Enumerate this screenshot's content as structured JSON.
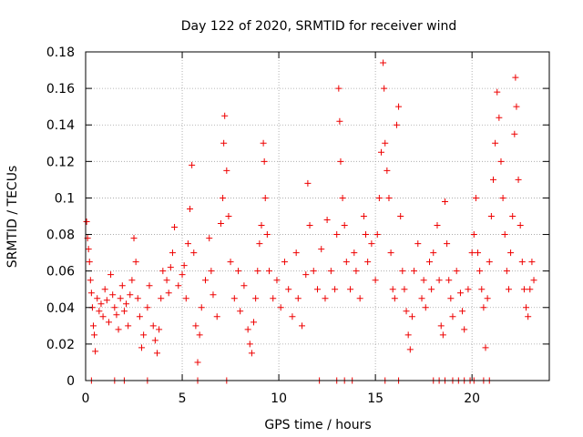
{
  "chart_data": {
    "type": "scatter",
    "title": "Day 122 of 2020, SRMTID for receiver wind",
    "xlabel": "GPS time / hours",
    "ylabel": "SRMTID / TECUs",
    "xlim": [
      0,
      24
    ],
    "ylim": [
      0,
      0.18
    ],
    "x_ticks": [
      "0",
      "5",
      "10",
      "15",
      "20"
    ],
    "x_tick_values": [
      0,
      5,
      10,
      15,
      20
    ],
    "y_ticks": [
      "0",
      "0.02",
      "0.04",
      "0.06",
      "0.08",
      "0.1",
      "0.12",
      "0.14",
      "0.16",
      "0.18"
    ],
    "y_tick_values": [
      0,
      0.02,
      0.04,
      0.06,
      0.08,
      0.1,
      0.12,
      0.14,
      0.16,
      0.18
    ],
    "grid": true,
    "marker": "plus",
    "color": "#ee0000",
    "series": [
      {
        "name": "SRMTID",
        "points": [
          [
            0.05,
            0.087
          ],
          [
            0.1,
            0.078
          ],
          [
            0.15,
            0.072
          ],
          [
            0.2,
            0.065
          ],
          [
            0.25,
            0.055
          ],
          [
            0.3,
            0.048
          ],
          [
            0.35,
            0.04
          ],
          [
            0.4,
            0.03
          ],
          [
            0.45,
            0.025
          ],
          [
            0.5,
            0.016
          ],
          [
            0.6,
            0.045
          ],
          [
            0.7,
            0.038
          ],
          [
            0.8,
            0.042
          ],
          [
            0.9,
            0.035
          ],
          [
            1.0,
            0.05
          ],
          [
            1.1,
            0.044
          ],
          [
            1.2,
            0.032
          ],
          [
            1.3,
            0.058
          ],
          [
            1.4,
            0.047
          ],
          [
            1.5,
            0.04
          ],
          [
            1.6,
            0.036
          ],
          [
            1.7,
            0.028
          ],
          [
            1.8,
            0.045
          ],
          [
            1.9,
            0.052
          ],
          [
            2.0,
            0.038
          ],
          [
            2.1,
            0.042
          ],
          [
            2.2,
            0.03
          ],
          [
            2.3,
            0.047
          ],
          [
            2.4,
            0.055
          ],
          [
            2.5,
            0.078
          ],
          [
            2.6,
            0.065
          ],
          [
            2.7,
            0.045
          ],
          [
            2.8,
            0.035
          ],
          [
            2.9,
            0.018
          ],
          [
            3.0,
            0.025
          ],
          [
            3.2,
            0.04
          ],
          [
            3.3,
            0.052
          ],
          [
            3.5,
            0.03
          ],
          [
            3.6,
            0.022
          ],
          [
            3.7,
            0.015
          ],
          [
            3.8,
            0.028
          ],
          [
            3.9,
            0.045
          ],
          [
            4.0,
            0.06
          ],
          [
            4.2,
            0.055
          ],
          [
            4.3,
            0.048
          ],
          [
            4.4,
            0.062
          ],
          [
            4.5,
            0.07
          ],
          [
            4.6,
            0.084
          ],
          [
            4.8,
            0.052
          ],
          [
            5.0,
            0.058
          ],
          [
            5.1,
            0.063
          ],
          [
            5.2,
            0.045
          ],
          [
            5.3,
            0.075
          ],
          [
            5.4,
            0.094
          ],
          [
            5.5,
            0.118
          ],
          [
            5.6,
            0.07
          ],
          [
            5.7,
            0.03
          ],
          [
            5.8,
            0.01
          ],
          [
            5.9,
            0.025
          ],
          [
            6.0,
            0.04
          ],
          [
            6.2,
            0.055
          ],
          [
            6.4,
            0.078
          ],
          [
            6.5,
            0.06
          ],
          [
            6.6,
            0.047
          ],
          [
            6.8,
            0.035
          ],
          [
            7.0,
            0.086
          ],
          [
            7.1,
            0.1
          ],
          [
            7.15,
            0.13
          ],
          [
            7.2,
            0.145
          ],
          [
            7.3,
            0.115
          ],
          [
            7.4,
            0.09
          ],
          [
            7.5,
            0.065
          ],
          [
            7.7,
            0.045
          ],
          [
            7.9,
            0.06
          ],
          [
            8.0,
            0.038
          ],
          [
            8.2,
            0.052
          ],
          [
            8.4,
            0.028
          ],
          [
            8.5,
            0.02
          ],
          [
            8.6,
            0.015
          ],
          [
            8.7,
            0.032
          ],
          [
            8.8,
            0.045
          ],
          [
            8.9,
            0.06
          ],
          [
            9.0,
            0.075
          ],
          [
            9.1,
            0.085
          ],
          [
            9.2,
            0.13
          ],
          [
            9.25,
            0.12
          ],
          [
            9.3,
            0.1
          ],
          [
            9.4,
            0.08
          ],
          [
            9.5,
            0.06
          ],
          [
            9.7,
            0.045
          ],
          [
            9.9,
            0.055
          ],
          [
            10.1,
            0.04
          ],
          [
            10.3,
            0.065
          ],
          [
            10.5,
            0.05
          ],
          [
            10.7,
            0.035
          ],
          [
            10.9,
            0.07
          ],
          [
            11.0,
            0.045
          ],
          [
            11.2,
            0.03
          ],
          [
            11.4,
            0.058
          ],
          [
            11.5,
            0.108
          ],
          [
            11.6,
            0.085
          ],
          [
            11.8,
            0.06
          ],
          [
            12.0,
            0.05
          ],
          [
            12.2,
            0.072
          ],
          [
            12.4,
            0.045
          ],
          [
            12.5,
            0.088
          ],
          [
            12.7,
            0.06
          ],
          [
            12.9,
            0.05
          ],
          [
            13.0,
            0.08
          ],
          [
            13.1,
            0.16
          ],
          [
            13.15,
            0.142
          ],
          [
            13.2,
            0.12
          ],
          [
            13.3,
            0.1
          ],
          [
            13.4,
            0.085
          ],
          [
            13.5,
            0.065
          ],
          [
            13.7,
            0.05
          ],
          [
            13.9,
            0.07
          ],
          [
            14.0,
            0.06
          ],
          [
            14.2,
            0.045
          ],
          [
            14.4,
            0.09
          ],
          [
            14.5,
            0.08
          ],
          [
            14.6,
            0.065
          ],
          [
            14.8,
            0.075
          ],
          [
            15.0,
            0.055
          ],
          [
            15.1,
            0.08
          ],
          [
            15.2,
            0.1
          ],
          [
            15.3,
            0.125
          ],
          [
            15.4,
            0.174
          ],
          [
            15.45,
            0.16
          ],
          [
            15.5,
            0.13
          ],
          [
            15.6,
            0.115
          ],
          [
            15.7,
            0.1
          ],
          [
            15.8,
            0.07
          ],
          [
            15.9,
            0.05
          ],
          [
            16.0,
            0.045
          ],
          [
            16.1,
            0.14
          ],
          [
            16.2,
            0.15
          ],
          [
            16.3,
            0.09
          ],
          [
            16.4,
            0.06
          ],
          [
            16.5,
            0.05
          ],
          [
            16.6,
            0.038
          ],
          [
            16.7,
            0.025
          ],
          [
            16.8,
            0.017
          ],
          [
            16.9,
            0.035
          ],
          [
            17.0,
            0.06
          ],
          [
            17.2,
            0.075
          ],
          [
            17.4,
            0.045
          ],
          [
            17.5,
            0.055
          ],
          [
            17.6,
            0.04
          ],
          [
            17.8,
            0.065
          ],
          [
            17.9,
            0.05
          ],
          [
            18.0,
            0.07
          ],
          [
            18.2,
            0.085
          ],
          [
            18.3,
            0.055
          ],
          [
            18.4,
            0.03
          ],
          [
            18.5,
            0.025
          ],
          [
            18.6,
            0.098
          ],
          [
            18.7,
            0.075
          ],
          [
            18.8,
            0.055
          ],
          [
            18.9,
            0.045
          ],
          [
            19.0,
            0.035
          ],
          [
            19.2,
            0.06
          ],
          [
            19.4,
            0.048
          ],
          [
            19.5,
            0.038
          ],
          [
            19.6,
            0.028
          ],
          [
            19.8,
            0.05
          ],
          [
            20.0,
            0.07
          ],
          [
            20.1,
            0.08
          ],
          [
            20.2,
            0.1
          ],
          [
            20.3,
            0.07
          ],
          [
            20.4,
            0.06
          ],
          [
            20.5,
            0.05
          ],
          [
            20.6,
            0.04
          ],
          [
            20.7,
            0.018
          ],
          [
            20.8,
            0.045
          ],
          [
            20.9,
            0.065
          ],
          [
            21.0,
            0.09
          ],
          [
            21.1,
            0.11
          ],
          [
            21.2,
            0.13
          ],
          [
            21.3,
            0.158
          ],
          [
            21.4,
            0.144
          ],
          [
            21.5,
            0.12
          ],
          [
            21.6,
            0.1
          ],
          [
            21.7,
            0.08
          ],
          [
            21.8,
            0.06
          ],
          [
            21.9,
            0.05
          ],
          [
            22.0,
            0.07
          ],
          [
            22.1,
            0.09
          ],
          [
            22.2,
            0.135
          ],
          [
            22.25,
            0.166
          ],
          [
            22.3,
            0.15
          ],
          [
            22.4,
            0.11
          ],
          [
            22.5,
            0.085
          ],
          [
            22.6,
            0.065
          ],
          [
            22.7,
            0.05
          ],
          [
            22.8,
            0.04
          ],
          [
            22.9,
            0.035
          ],
          [
            23.0,
            0.05
          ],
          [
            23.1,
            0.065
          ],
          [
            23.2,
            0.055
          ],
          [
            0.3,
            0.0
          ],
          [
            1.5,
            0.0
          ],
          [
            2.0,
            0.0
          ],
          [
            3.2,
            0.0
          ],
          [
            5.8,
            0.0
          ],
          [
            7.3,
            0.0
          ],
          [
            12.1,
            0.0
          ],
          [
            13.0,
            0.0
          ],
          [
            13.4,
            0.0
          ],
          [
            13.8,
            0.0
          ],
          [
            15.5,
            0.0
          ],
          [
            16.2,
            0.0
          ],
          [
            18.0,
            0.0
          ],
          [
            18.3,
            0.0
          ],
          [
            18.6,
            0.0
          ],
          [
            19.0,
            0.0
          ],
          [
            19.3,
            0.0
          ],
          [
            19.6,
            0.0
          ],
          [
            19.9,
            0.0
          ],
          [
            20.1,
            0.0
          ],
          [
            20.6,
            0.0
          ],
          [
            20.9,
            0.0
          ]
        ]
      }
    ]
  }
}
